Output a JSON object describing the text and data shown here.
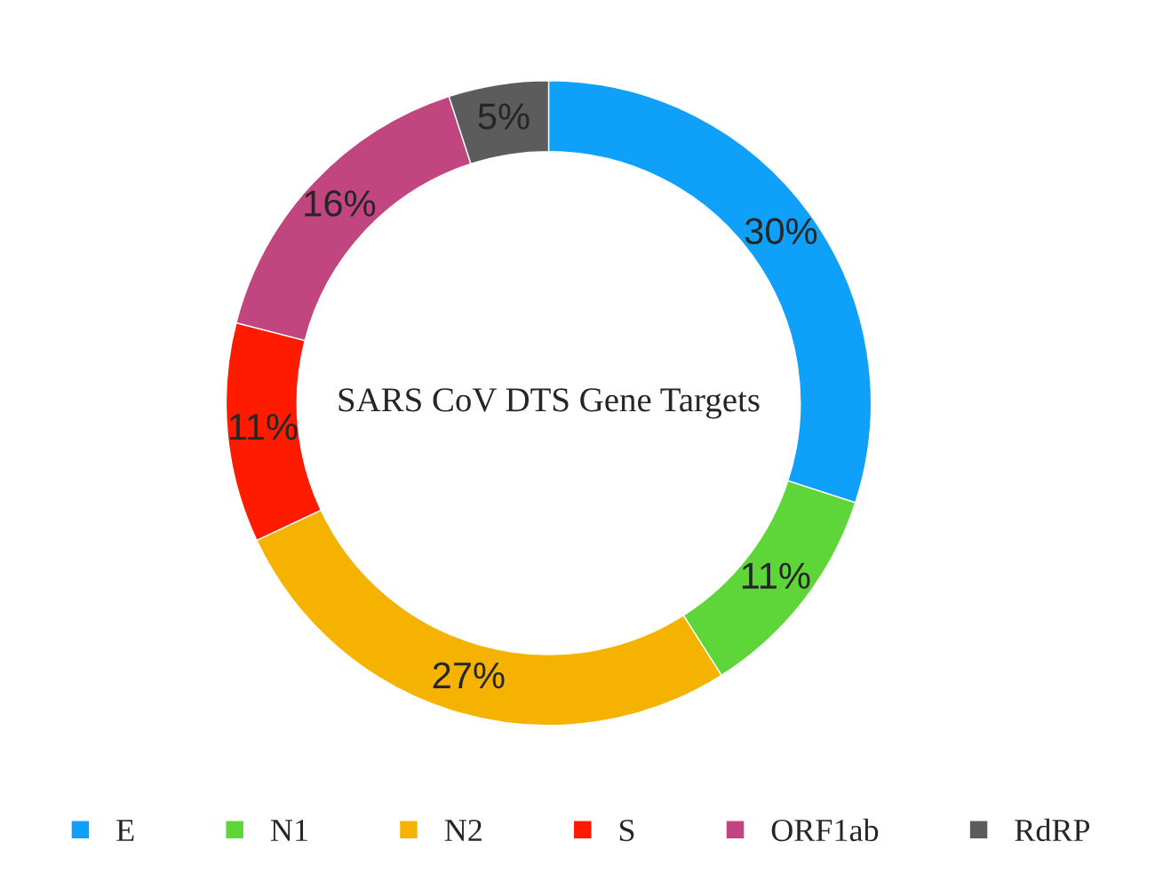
{
  "chart_data": {
    "type": "donut",
    "title": "SARS CoV DTS Gene Targets",
    "categories": [
      "E",
      "N1",
      "N2",
      "S",
      "ORF1ab",
      "RdRP"
    ],
    "values": [
      30,
      11,
      27,
      11,
      16,
      5
    ],
    "colors": [
      "#0fa0fa",
      "#5ed63a",
      "#f5b300",
      "#fe1b00",
      "#c1457f",
      "#5c5c5c"
    ],
    "value_labels": [
      "30%",
      "11%",
      "27%",
      "11%",
      "16%",
      "5%"
    ],
    "legend": "bottom"
  }
}
